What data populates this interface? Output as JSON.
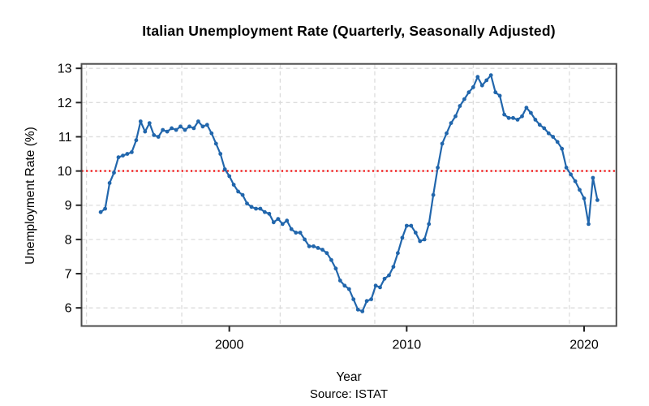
{
  "chart_data": {
    "type": "line",
    "title": "Italian Unemployment Rate (Quarterly, Seasonally Adjusted)",
    "xlabel": "Year",
    "ylabel": "Unemployment Rate (%)",
    "source_note": "Source: ISTAT",
    "unit": "percent",
    "start_period": "1992-Q4",
    "end_period": "2020-Q4",
    "x_start_year": 1992.75,
    "x_step_years": 0.25,
    "marker": "filled-circle",
    "legend": "none",
    "series": [
      {
        "name": "Unemployment rate (%)",
        "color": "#2166AC",
        "values": [
          8.8,
          8.9,
          9.65,
          9.95,
          10.4,
          10.45,
          10.5,
          10.55,
          10.9,
          11.45,
          11.15,
          11.4,
          11.05,
          11.0,
          11.2,
          11.15,
          11.25,
          11.2,
          11.3,
          11.2,
          11.3,
          11.25,
          11.45,
          11.3,
          11.35,
          11.1,
          10.8,
          10.5,
          10.05,
          9.85,
          9.6,
          9.4,
          9.3,
          9.05,
          8.95,
          8.9,
          8.9,
          8.8,
          8.75,
          8.5,
          8.6,
          8.45,
          8.55,
          8.3,
          8.2,
          8.2,
          8.0,
          7.8,
          7.8,
          7.75,
          7.7,
          7.6,
          7.4,
          7.15,
          6.8,
          6.65,
          6.55,
          6.25,
          5.95,
          5.9,
          6.2,
          6.25,
          6.65,
          6.6,
          6.85,
          6.95,
          7.2,
          7.6,
          8.05,
          8.4,
          8.4,
          8.2,
          7.95,
          8.0,
          8.45,
          9.3,
          10.1,
          10.8,
          11.1,
          11.4,
          11.6,
          11.9,
          12.1,
          12.3,
          12.45,
          12.75,
          12.5,
          12.65,
          12.8,
          12.3,
          12.2,
          11.65,
          11.55,
          11.55,
          11.5,
          11.6,
          11.85,
          11.7,
          11.5,
          11.35,
          11.25,
          11.1,
          11.0,
          10.85,
          10.65,
          10.1,
          9.9,
          9.7,
          9.45,
          9.2,
          8.45,
          9.8,
          9.15
        ]
      }
    ],
    "reference_line": {
      "y": 10,
      "color": "#F20000",
      "style": "dotted"
    },
    "x_axis": {
      "ticks": [
        2000,
        2010,
        2020
      ],
      "range": [
        1991.67,
        2021.82
      ]
    },
    "y_axis": {
      "ticks": [
        6,
        7,
        8,
        9,
        10,
        11,
        12,
        13
      ],
      "range": [
        5.47,
        13.13
      ]
    },
    "grid": {
      "on": true,
      "color": "#DCDCDC",
      "x_lines_years": [
        1991.95,
        1997.32,
        2002.87,
        2008.2,
        2013.75,
        2019.17
      ],
      "y_lines": [
        6,
        7,
        8,
        9,
        10,
        11,
        12,
        13
      ]
    },
    "colors": {
      "border": "#4D4D4D",
      "tick": "#222222",
      "text": "#000000",
      "background": "#FFFFFF"
    }
  }
}
